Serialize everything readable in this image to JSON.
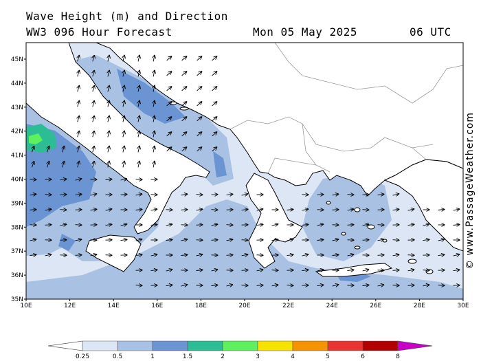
{
  "header": {
    "title": "Wave Height (m) and Direction",
    "model_line": "WW3 096 Hour Forecast",
    "date": "Mon 05 May 2025",
    "time": "06 UTC"
  },
  "credit": "© www.PassageWeather.com",
  "map": {
    "lon_labels": [
      "10E",
      "12E",
      "14E",
      "16E",
      "18E",
      "20E",
      "22E",
      "24E",
      "26E",
      "28E",
      "30E"
    ],
    "lat_labels": [
      "45N",
      "44N",
      "43N",
      "42N",
      "41N",
      "40N",
      "39N",
      "38N",
      "37N",
      "36N",
      "35N"
    ]
  },
  "legend": {
    "labels": [
      "0.25",
      "0.5",
      "1",
      "1.5",
      "2",
      "3",
      "4",
      "5",
      "6",
      "8"
    ],
    "colors": [
      "#ffffff",
      "#dde6f4",
      "#a9c2e4",
      "#6b94d2",
      "#2dbd94",
      "#5ef05e",
      "#f6e400",
      "#f59300",
      "#ea3434",
      "#b30000",
      "#c800c8"
    ]
  },
  "colors": {
    "sea_low": "#dde6f4",
    "sea_mid": "#a9c2e4",
    "sea_high": "#6b94d2",
    "sea_green": "#2dbd94",
    "sea_lightgreen": "#5ef05e"
  }
}
